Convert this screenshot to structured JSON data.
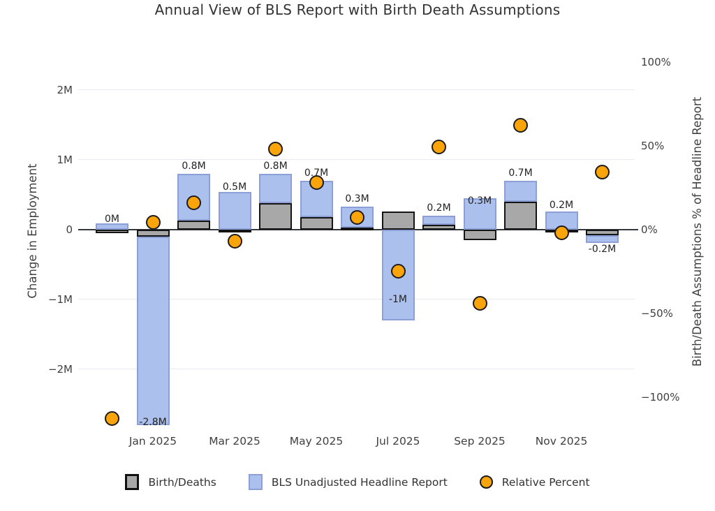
{
  "title": "Annual View of BLS Report with Birth Death Assumptions",
  "axes": {
    "left": {
      "title": "Change in Employment",
      "ticks": [
        {
          "label": "2M",
          "value": 2
        },
        {
          "label": "1M",
          "value": 1
        },
        {
          "label": "0",
          "value": 0
        },
        {
          "label": "−1M",
          "value": -1
        },
        {
          "label": "−2M",
          "value": -2
        }
      ]
    },
    "right": {
      "title": "Birth/Death Assumptions % of Headline Report",
      "ticks": [
        {
          "label": "100%",
          "value": 100
        },
        {
          "label": "50%",
          "value": 50
        },
        {
          "label": "0%",
          "value": 0
        },
        {
          "label": "−50%",
          "value": -50
        },
        {
          "label": "−100%",
          "value": -100
        }
      ]
    },
    "x": {
      "ticks": [
        {
          "label": "Jan 2025",
          "month_index": 1
        },
        {
          "label": "Mar 2025",
          "month_index": 3
        },
        {
          "label": "May 2025",
          "month_index": 5
        },
        {
          "label": "Jul 2025",
          "month_index": 7
        },
        {
          "label": "Sep 2025",
          "month_index": 9
        },
        {
          "label": "Nov 2025",
          "month_index": 11
        }
      ]
    }
  },
  "legend": {
    "items": [
      {
        "label": "Birth/Deaths",
        "swatch": "gray-bar"
      },
      {
        "label": "BLS Unadjusted Headline Report",
        "swatch": "blue-bar"
      },
      {
        "label": "Relative Percent",
        "swatch": "orange-dot"
      }
    ]
  },
  "colors": {
    "blue_fill": "#acc0ee",
    "blue_border": "#8ca0d7",
    "gray_fill": "#a8a8a8",
    "gray_border": "#141414",
    "orange_fill": "#faa40b",
    "orange_border": "#1b1b1b",
    "gridline": "#e7e9ee",
    "zero_line": "#33383d",
    "text": "#333333"
  },
  "chart_data": {
    "type": "bar",
    "barmode": "relative",
    "title": "Annual View of BLS Report with Birth Death Assumptions",
    "xlabel": "",
    "ylabel_left": "Change in Employment",
    "ylabel_right": "Birth/Death Assumptions % of Headline Report",
    "ylim_left": [
      -2.9,
      2.5
    ],
    "ylim_right": [
      -120,
      105
    ],
    "grid": true,
    "legend_position": "bottom",
    "x": [
      "Dec 2024",
      "Jan 2025",
      "Feb 2025",
      "Mar 2025",
      "Apr 2025",
      "May 2025",
      "Jun 2025",
      "Jul 2025",
      "Aug 2025",
      "Sep 2025",
      "Oct 2025",
      "Nov 2025",
      "Dec 2025"
    ],
    "series": [
      {
        "name": "Birth/Deaths",
        "type": "bar",
        "axis": "left",
        "values": [
          -0.05,
          -0.1,
          0.13,
          -0.04,
          0.38,
          0.18,
          0.03,
          0.26,
          0.07,
          -0.15,
          0.4,
          -0.02,
          -0.08
        ]
      },
      {
        "name": "BLS Unadjusted Headline Report",
        "type": "bar",
        "axis": "left",
        "net_values": [
          0.04,
          -2.8,
          0.8,
          0.5,
          0.8,
          0.7,
          0.33,
          -1.04,
          0.2,
          0.3,
          0.7,
          0.24,
          -0.19
        ],
        "labels": [
          "0M",
          "-2.8M",
          "0.8M",
          "0.5M",
          "0.8M",
          "0.7M",
          "0.3M",
          "-1M",
          "0.2M",
          "0.3M",
          "0.7M",
          "0.2M",
          "-0.2M"
        ]
      },
      {
        "name": "Relative Percent",
        "type": "scatter",
        "axis": "right",
        "values": [
          -113,
          4,
          16,
          -7,
          48,
          28,
          7,
          -25,
          49,
          -44,
          62,
          -2,
          34
        ]
      }
    ]
  }
}
